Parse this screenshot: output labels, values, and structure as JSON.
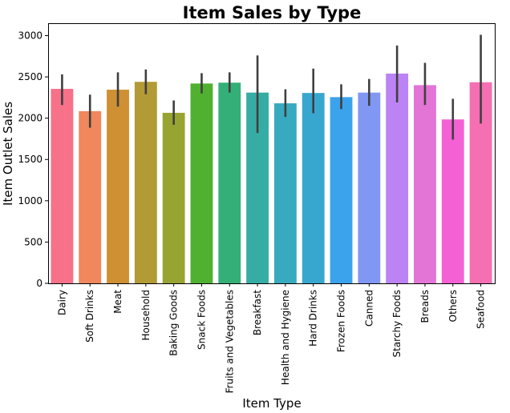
{
  "chart_data": {
    "type": "bar",
    "title": "Item Sales by Type",
    "xlabel": "Item Type",
    "ylabel": "Item Outlet Sales",
    "ylim": [
      0,
      3150
    ],
    "yticks": [
      0,
      500,
      1000,
      1500,
      2000,
      2500,
      3000
    ],
    "ytick_labels": [
      "0",
      "500",
      "1000",
      "1500",
      "2000",
      "2500",
      "3000"
    ],
    "grid": false,
    "categories": [
      "Dairy",
      "Soft Drinks",
      "Meat",
      "Household",
      "Baking Goods",
      "Snack Foods",
      "Fruits and Vegetables",
      "Breakfast",
      "Health and Hygiene",
      "Hard Drinks",
      "Frozen Foods",
      "Canned",
      "Starchy Foods",
      "Breads",
      "Others",
      "Seafood"
    ],
    "values": [
      2355,
      2085,
      2345,
      2440,
      2065,
      2420,
      2430,
      2310,
      2180,
      2305,
      2255,
      2310,
      2540,
      2400,
      1985,
      2435
    ],
    "error_low": [
      2160,
      1885,
      2140,
      2290,
      1920,
      2300,
      2310,
      1820,
      2015,
      2060,
      2110,
      2150,
      2190,
      2160,
      1740,
      1935
    ],
    "error_high": [
      2530,
      2285,
      2555,
      2590,
      2215,
      2545,
      2555,
      2760,
      2350,
      2600,
      2410,
      2475,
      2880,
      2670,
      2235,
      3010
    ],
    "colors": [
      "#f77189",
      "#f0875d",
      "#ce9032",
      "#b29a35",
      "#97a431",
      "#50b131",
      "#34af78",
      "#36ada4",
      "#38aabf",
      "#38a7d0",
      "#3ba3ec",
      "#8197f4",
      "#bb83f4",
      "#e375d7",
      "#f461d5",
      "#f56fb2"
    ]
  }
}
